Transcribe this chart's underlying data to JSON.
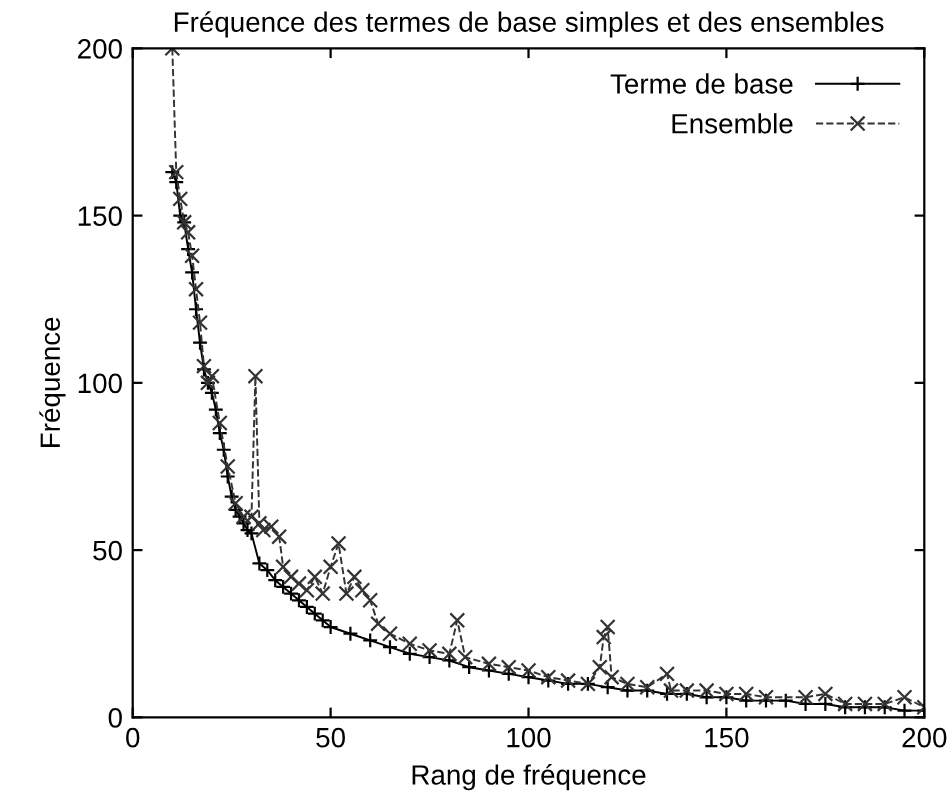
{
  "chart_data": {
    "type": "line",
    "title": "Fréquence des termes de base simples et des ensembles",
    "xlabel": "Rang de fréquence",
    "ylabel": "Fréquence",
    "xlim": [
      0,
      200
    ],
    "ylim": [
      0,
      200
    ],
    "xticks": [
      0,
      50,
      100,
      150,
      200
    ],
    "yticks": [
      0,
      50,
      100,
      150,
      200
    ],
    "grid": false,
    "legend": "top right",
    "series": [
      {
        "name": "Terme de base",
        "color": "#000000",
        "marker": "plus",
        "line_style": "solid",
        "x": [
          10,
          11,
          12,
          13,
          14,
          15,
          16,
          17,
          18,
          19,
          20,
          21,
          22,
          23,
          24,
          25,
          26,
          27,
          28,
          29,
          30,
          32,
          34,
          36,
          38,
          40,
          42,
          44,
          46,
          48,
          50,
          55,
          60,
          65,
          70,
          75,
          80,
          85,
          90,
          95,
          100,
          105,
          110,
          115,
          120,
          125,
          130,
          135,
          140,
          145,
          150,
          155,
          160,
          165,
          170,
          175,
          180,
          185,
          190,
          195,
          200
        ],
        "values": [
          163,
          160,
          150,
          148,
          140,
          133,
          122,
          112,
          104,
          100,
          97,
          92,
          85,
          80,
          72,
          66,
          62,
          60,
          58,
          56,
          55,
          46,
          44,
          41,
          39,
          37,
          35,
          33,
          31,
          29,
          27,
          25,
          23,
          21,
          19,
          18,
          17,
          15,
          14,
          13,
          12,
          11,
          10,
          10,
          9,
          8,
          8,
          7,
          7,
          6,
          6,
          5,
          5,
          5,
          4,
          4,
          3,
          3,
          3,
          2,
          2
        ]
      },
      {
        "name": "Ensemble",
        "color": "#333333",
        "marker": "cross",
        "line_style": "dashed",
        "x": [
          10,
          11,
          12,
          13,
          14,
          15,
          16,
          17,
          18,
          19,
          20,
          22,
          24,
          26,
          28,
          30,
          31,
          32,
          33,
          35,
          37,
          38,
          40,
          42,
          44,
          46,
          48,
          50,
          52,
          54,
          56,
          58,
          60,
          62,
          65,
          70,
          75,
          80,
          82,
          84,
          90,
          95,
          100,
          105,
          110,
          115,
          118,
          119,
          120,
          121,
          125,
          130,
          135,
          136,
          140,
          145,
          150,
          155,
          160,
          170,
          175,
          180,
          185,
          190,
          195,
          200
        ],
        "values": [
          200,
          163,
          155,
          148,
          145,
          138,
          128,
          118,
          105,
          100,
          102,
          88,
          75,
          64,
          60,
          60,
          102,
          58,
          56,
          57,
          54,
          45,
          42,
          40,
          38,
          42,
          37,
          45,
          52,
          37,
          42,
          38,
          35,
          28,
          25,
          22,
          20,
          19,
          29,
          18,
          16,
          15,
          14,
          12,
          11,
          10,
          15,
          24,
          27,
          12,
          10,
          9,
          13,
          8,
          8,
          8,
          7,
          7,
          6,
          6,
          7,
          4,
          4,
          4,
          6,
          3
        ]
      }
    ]
  }
}
